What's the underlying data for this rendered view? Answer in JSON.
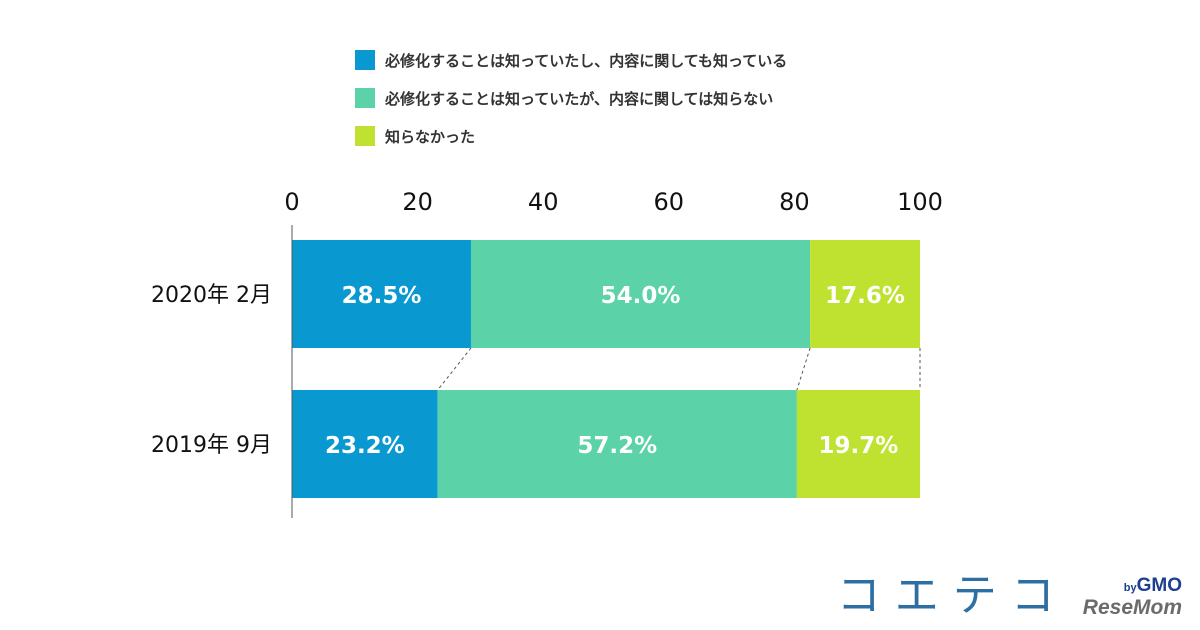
{
  "chart_data": {
    "type": "bar",
    "orientation": "horizontal",
    "stacked": true,
    "categories": [
      "2020年 2月",
      "2019年 9月"
    ],
    "series": [
      {
        "name": "必修化することは知っていたし、内容に関しても知っている",
        "color": "#0999d0",
        "values": [
          28.5,
          23.2
        ],
        "labels": [
          "28.5%",
          "23.2%"
        ]
      },
      {
        "name": "必修化することは知っていたが、内容に関しては知らない",
        "color": "#5cd2a9",
        "values": [
          54.0,
          57.2
        ],
        "labels": [
          "54.0%",
          "57.2%"
        ]
      },
      {
        "name": "知らなかった",
        "color": "#bfe231",
        "values": [
          17.6,
          19.7
        ],
        "labels": [
          "17.6%",
          "19.7%"
        ]
      }
    ],
    "xlim": [
      0,
      100
    ],
    "xticks": [
      "0",
      "20",
      "40",
      "60",
      "80",
      "100"
    ],
    "legend_position": "top",
    "connector_lines": true
  },
  "brand": {
    "main": "コエテコ",
    "by": "by",
    "gmo": "GMO",
    "sub": "ReseMom"
  }
}
